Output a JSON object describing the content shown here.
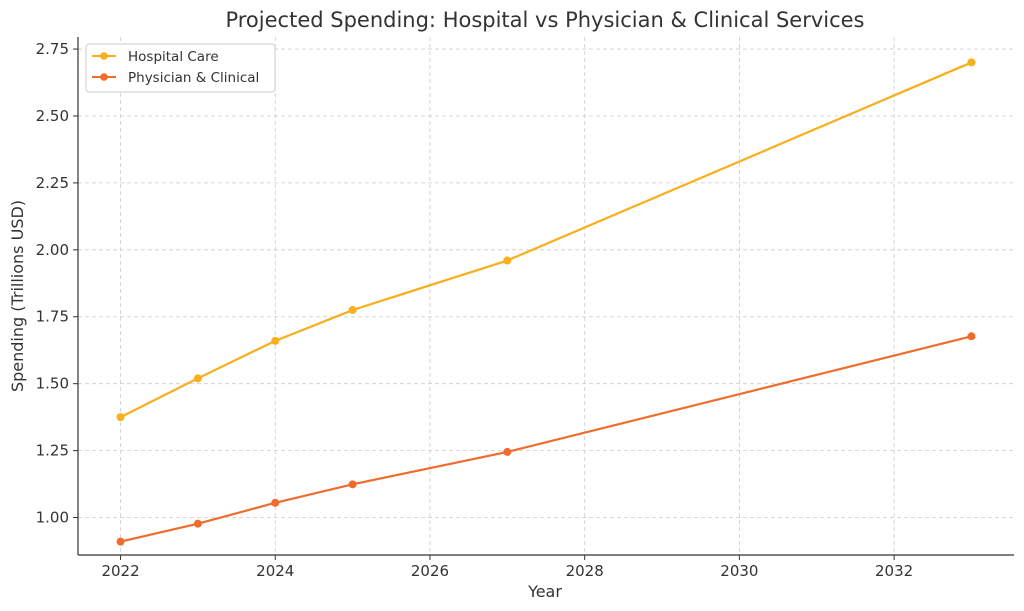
{
  "chart_data": {
    "type": "line",
    "title": "Projected Spending: Hospital vs Physician & Clinical Services",
    "xlabel": "Year",
    "ylabel": "Spending (Trillions USD)",
    "xlim": [
      2021.45,
      2033.55
    ],
    "ylim": [
      0.86,
      2.795
    ],
    "x_ticks": [
      2022,
      2024,
      2026,
      2028,
      2030,
      2032
    ],
    "y_ticks": [
      1.0,
      1.25,
      1.5,
      1.75,
      2.0,
      2.25,
      2.5,
      2.75
    ],
    "grid": true,
    "legend_position": "top-left",
    "series": [
      {
        "name": "Hospital Care",
        "color": "#f9ae1b",
        "x": [
          2022,
          2023,
          2024,
          2025,
          2027,
          2033
        ],
        "values": [
          1.375,
          1.52,
          1.66,
          1.775,
          1.96,
          2.7
        ]
      },
      {
        "name": "Physician & Clinical",
        "color": "#ef6c2d",
        "x": [
          2022,
          2023,
          2024,
          2025,
          2027,
          2033
        ],
        "values": [
          0.91,
          0.977,
          1.055,
          1.124,
          1.245,
          1.677
        ]
      }
    ]
  }
}
